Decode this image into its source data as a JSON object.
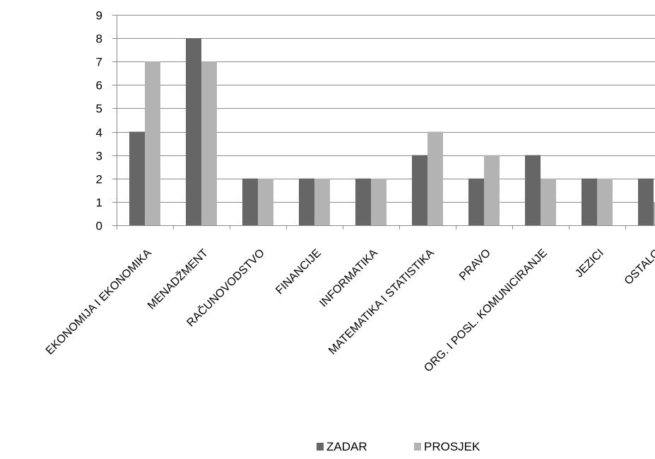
{
  "chart_data": {
    "type": "bar",
    "title": "",
    "xlabel": "",
    "ylabel": "",
    "ylim": [
      0,
      9
    ],
    "yticks": [
      0,
      1,
      2,
      3,
      4,
      5,
      6,
      7,
      8,
      9
    ],
    "grid": true,
    "legend_position": "bottom",
    "categories": [
      "EKONOMIJA I EKONOMIKA",
      "MENADŽMENT",
      "RAČUNOVODSTVO",
      "FINANCIJE",
      "INFORMATIKA",
      "MATEMATIKA I STATISTIKA",
      "PRAVO",
      "ORG. I POSL. KOMUNICIRANJE",
      "JEZICI",
      "OSTALO"
    ],
    "series": [
      {
        "name": "ZADAR",
        "color": "#666666",
        "values": [
          4,
          8,
          2,
          2,
          2,
          3,
          2,
          3,
          2,
          2
        ]
      },
      {
        "name": "PROSJEK",
        "color": "#b3b3b3",
        "values": [
          7,
          7,
          2,
          2,
          2,
          4,
          3,
          2,
          2,
          1
        ]
      }
    ]
  }
}
